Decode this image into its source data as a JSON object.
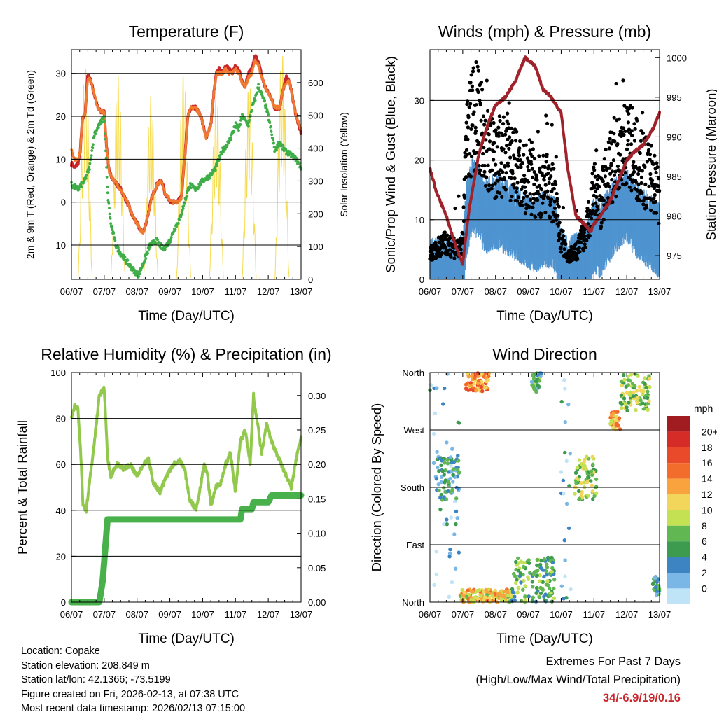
{
  "chart_data": [
    {
      "type": "line",
      "title": "Temperature (F)",
      "xlabel": "Time (Day/UTC)",
      "ylabel": "2m & 9m T (Red, Orange) & 2m Td (Green)",
      "y2label": "Solar Insolation (Yellow)",
      "x_ticks": [
        "06/07",
        "07/07",
        "08/07",
        "09/07",
        "10/07",
        "11/07",
        "12/07",
        "13/07"
      ],
      "y_ticks": [
        -10,
        0,
        10,
        20,
        30
      ],
      "y2_ticks": [
        0,
        100,
        200,
        300,
        400,
        500,
        600
      ],
      "ylim": [
        -18,
        35.5
      ],
      "y2lim": [
        0,
        700
      ],
      "grid_y": [
        -10,
        0,
        10,
        20,
        30
      ],
      "series": [
        {
          "name": "2m T",
          "color": "#c8262b",
          "x": [
            0,
            0.1,
            0.2,
            0.27,
            0.33,
            0.42,
            0.5,
            0.6,
            0.7,
            0.8,
            0.9,
            1.0,
            1.07,
            1.15,
            1.3,
            1.5,
            1.7,
            1.85,
            2.0,
            2.1,
            2.2,
            2.3,
            2.45,
            2.6,
            2.75,
            2.85,
            2.95,
            3.05,
            3.2,
            3.35,
            3.45,
            3.55,
            3.65,
            3.8,
            3.95,
            4.1,
            4.25,
            4.35,
            4.42,
            4.5,
            4.6,
            4.7,
            4.8,
            4.9,
            5.0,
            5.1,
            5.2,
            5.3,
            5.4,
            5.5,
            5.6,
            5.7,
            5.75,
            5.85,
            5.95,
            6.05,
            6.2,
            6.35,
            6.45,
            6.55,
            6.65,
            6.75,
            6.85,
            7.0
          ],
          "values": [
            9,
            8,
            9,
            12,
            19,
            21,
            30,
            28,
            25,
            22,
            21,
            21,
            13,
            7,
            5,
            3,
            0,
            -3,
            -5,
            -6.5,
            -7,
            -4,
            1,
            4,
            5,
            2,
            1,
            0,
            0,
            1,
            10,
            20,
            22,
            22,
            20,
            15,
            18,
            26,
            30,
            31,
            30,
            32,
            31,
            30,
            32,
            31,
            28,
            27,
            30,
            31,
            34,
            33,
            31,
            28,
            26,
            25,
            22,
            22,
            26,
            29,
            28,
            24,
            20,
            16
          ]
        },
        {
          "name": "9m T",
          "color": "#f07a30",
          "x": [
            0,
            0.1,
            0.2,
            0.27,
            0.33,
            0.42,
            0.5,
            0.6,
            0.7,
            0.8,
            0.9,
            1.0,
            1.07,
            1.15,
            1.3,
            1.5,
            1.7,
            1.85,
            2.0,
            2.1,
            2.2,
            2.3,
            2.45,
            2.6,
            2.75,
            2.85,
            2.95,
            3.05,
            3.2,
            3.35,
            3.45,
            3.55,
            3.65,
            3.8,
            3.95,
            4.1,
            4.25,
            4.35,
            4.42,
            4.5,
            4.6,
            4.7,
            4.8,
            4.9,
            5.0,
            5.1,
            5.2,
            5.3,
            5.4,
            5.5,
            5.6,
            5.7,
            5.75,
            5.85,
            5.95,
            6.05,
            6.2,
            6.35,
            6.45,
            6.55,
            6.65,
            6.75,
            6.85,
            7.0
          ],
          "values": [
            12,
            10,
            10,
            12,
            19,
            21,
            29,
            28,
            25,
            22,
            21,
            21,
            13,
            7,
            5,
            3,
            0,
            -3,
            -5,
            -6.5,
            -7,
            -4,
            1,
            4,
            5,
            2,
            1,
            0,
            0,
            1,
            10,
            20,
            22,
            22,
            20,
            15,
            18,
            26,
            30,
            30,
            30,
            31,
            30,
            30,
            31,
            30,
            28,
            27,
            29,
            30,
            33,
            32,
            30,
            28,
            26,
            25,
            22,
            22,
            26,
            28,
            28,
            24,
            20,
            17
          ]
        },
        {
          "name": "2m Td",
          "color": "#3fae49",
          "x": [
            0,
            0.2,
            0.4,
            0.55,
            0.7,
            0.85,
            1.0,
            1.1,
            1.2,
            1.35,
            1.5,
            1.7,
            1.9,
            2.05,
            2.2,
            2.4,
            2.6,
            2.8,
            3.0,
            3.15,
            3.3,
            3.45,
            3.6,
            3.8,
            4.0,
            4.2,
            4.4,
            4.6,
            4.8,
            5.0,
            5.1,
            5.2,
            5.4,
            5.5,
            5.6,
            5.7,
            5.8,
            5.9,
            6.0,
            6.1,
            6.2,
            6.35,
            6.5,
            6.7,
            6.85,
            7.0
          ],
          "values": [
            4,
            3,
            5,
            8,
            16,
            18,
            20,
            2,
            -5,
            -10,
            -12,
            -14,
            -16,
            -17,
            -14,
            -10,
            -9,
            -11,
            -9,
            -6,
            -4,
            0,
            4,
            3,
            5,
            6,
            8,
            12,
            14,
            18,
            17,
            20,
            18,
            22,
            24,
            27,
            25,
            23,
            20,
            16,
            12,
            14,
            12,
            11,
            10,
            8
          ]
        },
        {
          "name": "Solar Insolation",
          "axis": "y2",
          "color": "#f6dc52",
          "peaks_x": [
            0.42,
            1.42,
            2.42,
            3.42,
            4.42,
            5.42,
            6.42
          ],
          "peaks": [
            650,
            620,
            560,
            630,
            560,
            600,
            690
          ]
        }
      ]
    },
    {
      "type": "scatter",
      "title": "Winds (mph) & Pressure (mb)",
      "xlabel": "Time (Day/UTC)",
      "ylabel": "Sonic/Prop Wind & Gust (Blue, Black)",
      "y2label": "Station Pressure (Maroon)",
      "x_ticks": [
        "06/07",
        "07/07",
        "08/07",
        "09/07",
        "10/07",
        "11/07",
        "12/07",
        "13/07"
      ],
      "y_ticks": [
        0,
        10,
        20,
        30
      ],
      "y2_ticks": [
        975,
        980,
        985,
        990,
        995,
        1000
      ],
      "ylim": [
        0,
        38.5
      ],
      "y2lim": [
        972,
        1001
      ],
      "grid_y": [
        10,
        20,
        30
      ],
      "series": [
        {
          "name": "Wind",
          "color": "#4f94d0",
          "x": [
            0,
            0.4,
            0.8,
            1.0,
            1.1,
            1.3,
            1.5,
            1.7,
            2.0,
            2.3,
            2.6,
            2.9,
            3.2,
            3.5,
            3.8,
            4.0,
            4.2,
            4.5,
            4.8,
            5.0,
            5.2,
            5.4,
            5.6,
            5.8,
            6.0,
            6.2,
            6.4,
            6.6,
            6.8,
            7.0
          ],
          "values": [
            2,
            3,
            2,
            3,
            11,
            16,
            14,
            12,
            13,
            12,
            11,
            10,
            9,
            10,
            9,
            4,
            2,
            3,
            5,
            9,
            8,
            10,
            12,
            13,
            14,
            12,
            11,
            10,
            9,
            8
          ]
        },
        {
          "name": "Gust",
          "color": "#000000",
          "x": [
            0,
            0.4,
            0.8,
            1.0,
            1.1,
            1.3,
            1.5,
            1.7,
            2.0,
            2.3,
            2.6,
            2.9,
            3.2,
            3.5,
            3.8,
            4.0,
            4.2,
            4.5,
            4.8,
            5.0,
            5.2,
            5.4,
            5.6,
            5.8,
            6.0,
            6.2,
            6.4,
            6.6,
            6.8,
            7.0
          ],
          "values": [
            4,
            6,
            5,
            6,
            22,
            28,
            27,
            22,
            20,
            21,
            19,
            17,
            15,
            16,
            14,
            7,
            4,
            5,
            9,
            15,
            13,
            17,
            20,
            22,
            23,
            21,
            19,
            18,
            17,
            14
          ]
        },
        {
          "name": "Pressure",
          "axis": "y2",
          "color": "#a0222a",
          "x": [
            0,
            0.2,
            0.5,
            0.8,
            1.0,
            1.2,
            1.5,
            1.8,
            2.0,
            2.3,
            2.6,
            2.9,
            3.2,
            3.45,
            3.7,
            4.0,
            4.2,
            4.45,
            4.7,
            4.9,
            5.0,
            5.2,
            5.5,
            5.8,
            6.0,
            6.2,
            6.5,
            6.8,
            7.0
          ],
          "values": [
            986,
            983,
            980,
            976,
            974,
            981,
            988,
            992,
            994,
            995,
            997,
            1000,
            999,
            996,
            995,
            993,
            986,
            980,
            979,
            978,
            979,
            980,
            982,
            985,
            987,
            988,
            989,
            991,
            993
          ]
        }
      ]
    },
    {
      "type": "line",
      "title": "Relative Humidity (%) & Precipitation (in)",
      "xlabel": "Time (Day/UTC)",
      "ylabel": "Percent & Total Rainfall",
      "x_ticks": [
        "06/07",
        "07/07",
        "08/07",
        "09/07",
        "10/07",
        "11/07",
        "12/07",
        "13/07"
      ],
      "y_ticks": [
        0,
        20,
        40,
        60,
        80,
        100
      ],
      "y2_ticks": [
        0.0,
        0.05,
        0.1,
        0.15,
        0.2,
        0.25,
        0.3
      ],
      "ylim": [
        0,
        100
      ],
      "y2lim": [
        0,
        0.3333
      ],
      "grid_y": [
        20,
        40,
        60,
        80
      ],
      "series": [
        {
          "name": "Relative Humidity",
          "color": "#92c94c",
          "x": [
            0,
            0.1,
            0.2,
            0.3,
            0.35,
            0.45,
            0.55,
            0.7,
            0.85,
            1.0,
            1.1,
            1.2,
            1.4,
            1.6,
            1.8,
            2.0,
            2.2,
            2.35,
            2.5,
            2.7,
            2.9,
            3.1,
            3.3,
            3.45,
            3.6,
            3.8,
            3.95,
            4.05,
            4.15,
            4.25,
            4.4,
            4.55,
            4.7,
            4.85,
            5.0,
            5.15,
            5.3,
            5.45,
            5.55,
            5.65,
            5.8,
            5.95,
            6.1,
            6.25,
            6.4,
            6.55,
            6.7,
            6.85,
            7.0
          ],
          "values": [
            80,
            86,
            84,
            60,
            42,
            40,
            52,
            70,
            90,
            93,
            63,
            55,
            60,
            58,
            60,
            55,
            60,
            62,
            52,
            48,
            55,
            60,
            62,
            58,
            45,
            40,
            52,
            60,
            55,
            42,
            50,
            52,
            60,
            65,
            48,
            70,
            75,
            60,
            90,
            80,
            65,
            78,
            70,
            65,
            60,
            55,
            50,
            62,
            72
          ]
        },
        {
          "name": "Total Precipitation",
          "axis": "y2",
          "color": "#48b14b",
          "x": [
            0,
            0.85,
            0.95,
            1.0,
            1.1,
            1.2,
            5.15,
            5.2,
            5.5,
            5.55,
            6.0,
            6.1,
            7.0
          ],
          "values": [
            0,
            0,
            0.03,
            0.06,
            0.12,
            0.12,
            0.12,
            0.135,
            0.135,
            0.145,
            0.145,
            0.155,
            0.155
          ]
        }
      ]
    },
    {
      "type": "scatter",
      "title": "Wind Direction",
      "xlabel": "Time (Day/UTC)",
      "ylabel": "Direction (Colored By Speed)",
      "x_ticks": [
        "06/07",
        "07/07",
        "08/07",
        "09/07",
        "10/07",
        "11/07",
        "12/07",
        "13/07"
      ],
      "y_ticks": [
        "North",
        "East",
        "South",
        "West",
        "North"
      ],
      "ylim": [
        0,
        360
      ],
      "grid_y": [
        90,
        180,
        270
      ],
      "colorbar": {
        "title": "mph",
        "labels": [
          "20+",
          "18",
          "16",
          "14",
          "12",
          "10",
          "8",
          "6",
          "4",
          "2",
          "0"
        ],
        "colors": [
          "#a01c20",
          "#d62c27",
          "#e84a2a",
          "#f26c2c",
          "#f9a33e",
          "#f2d65b",
          "#c4e053",
          "#61b752",
          "#3c9b4e",
          "#3d84c2",
          "#7ab7e6",
          "#bfe3f7"
        ]
      },
      "clusters": [
        {
          "x": [
            0,
            0.9
          ],
          "dir": [
            0,
            360
          ],
          "speed": 2
        },
        {
          "x": [
            0.2,
            0.9
          ],
          "dir": [
            160,
            230
          ],
          "speed": 5
        },
        {
          "x": [
            1.1,
            1.8
          ],
          "dir": [
            330,
            360
          ],
          "speed": 15
        },
        {
          "x": [
            0.9,
            2.5
          ],
          "dir": [
            0,
            20
          ],
          "speed": 12
        },
        {
          "x": [
            2.5,
            3.8
          ],
          "dir": [
            0,
            70
          ],
          "speed": 7
        },
        {
          "x": [
            3.1,
            3.4
          ],
          "dir": [
            330,
            360
          ],
          "speed": 6
        },
        {
          "x": [
            4.0,
            4.3
          ],
          "dir": [
            0,
            360
          ],
          "speed": 2
        },
        {
          "x": [
            4.4,
            5.1
          ],
          "dir": [
            160,
            230
          ],
          "speed": 9
        },
        {
          "x": [
            5.5,
            5.8
          ],
          "dir": [
            270,
            300
          ],
          "speed": 13
        },
        {
          "x": [
            5.8,
            6.7
          ],
          "dir": [
            300,
            360
          ],
          "speed": 9
        },
        {
          "x": [
            6.8,
            7.0
          ],
          "dir": [
            10,
            40
          ],
          "speed": 5
        }
      ]
    }
  ],
  "info": {
    "location": "Location: Copake",
    "elevation": "Station elevation: 208.849 m",
    "latlon": "Station lat/lon: 42.1366; -73.5199",
    "created": "Figure created on Fri, 2026-02-13, at 07:38 UTC",
    "recent": "Most recent data timestamp: 2026/02/13 07:15:00"
  },
  "extremes": {
    "title": "Extremes For Past 7 Days",
    "subtitle": "(High/Low/Max Wind/Total Precipitation)",
    "values": "34/-6.9/19/0.16"
  }
}
